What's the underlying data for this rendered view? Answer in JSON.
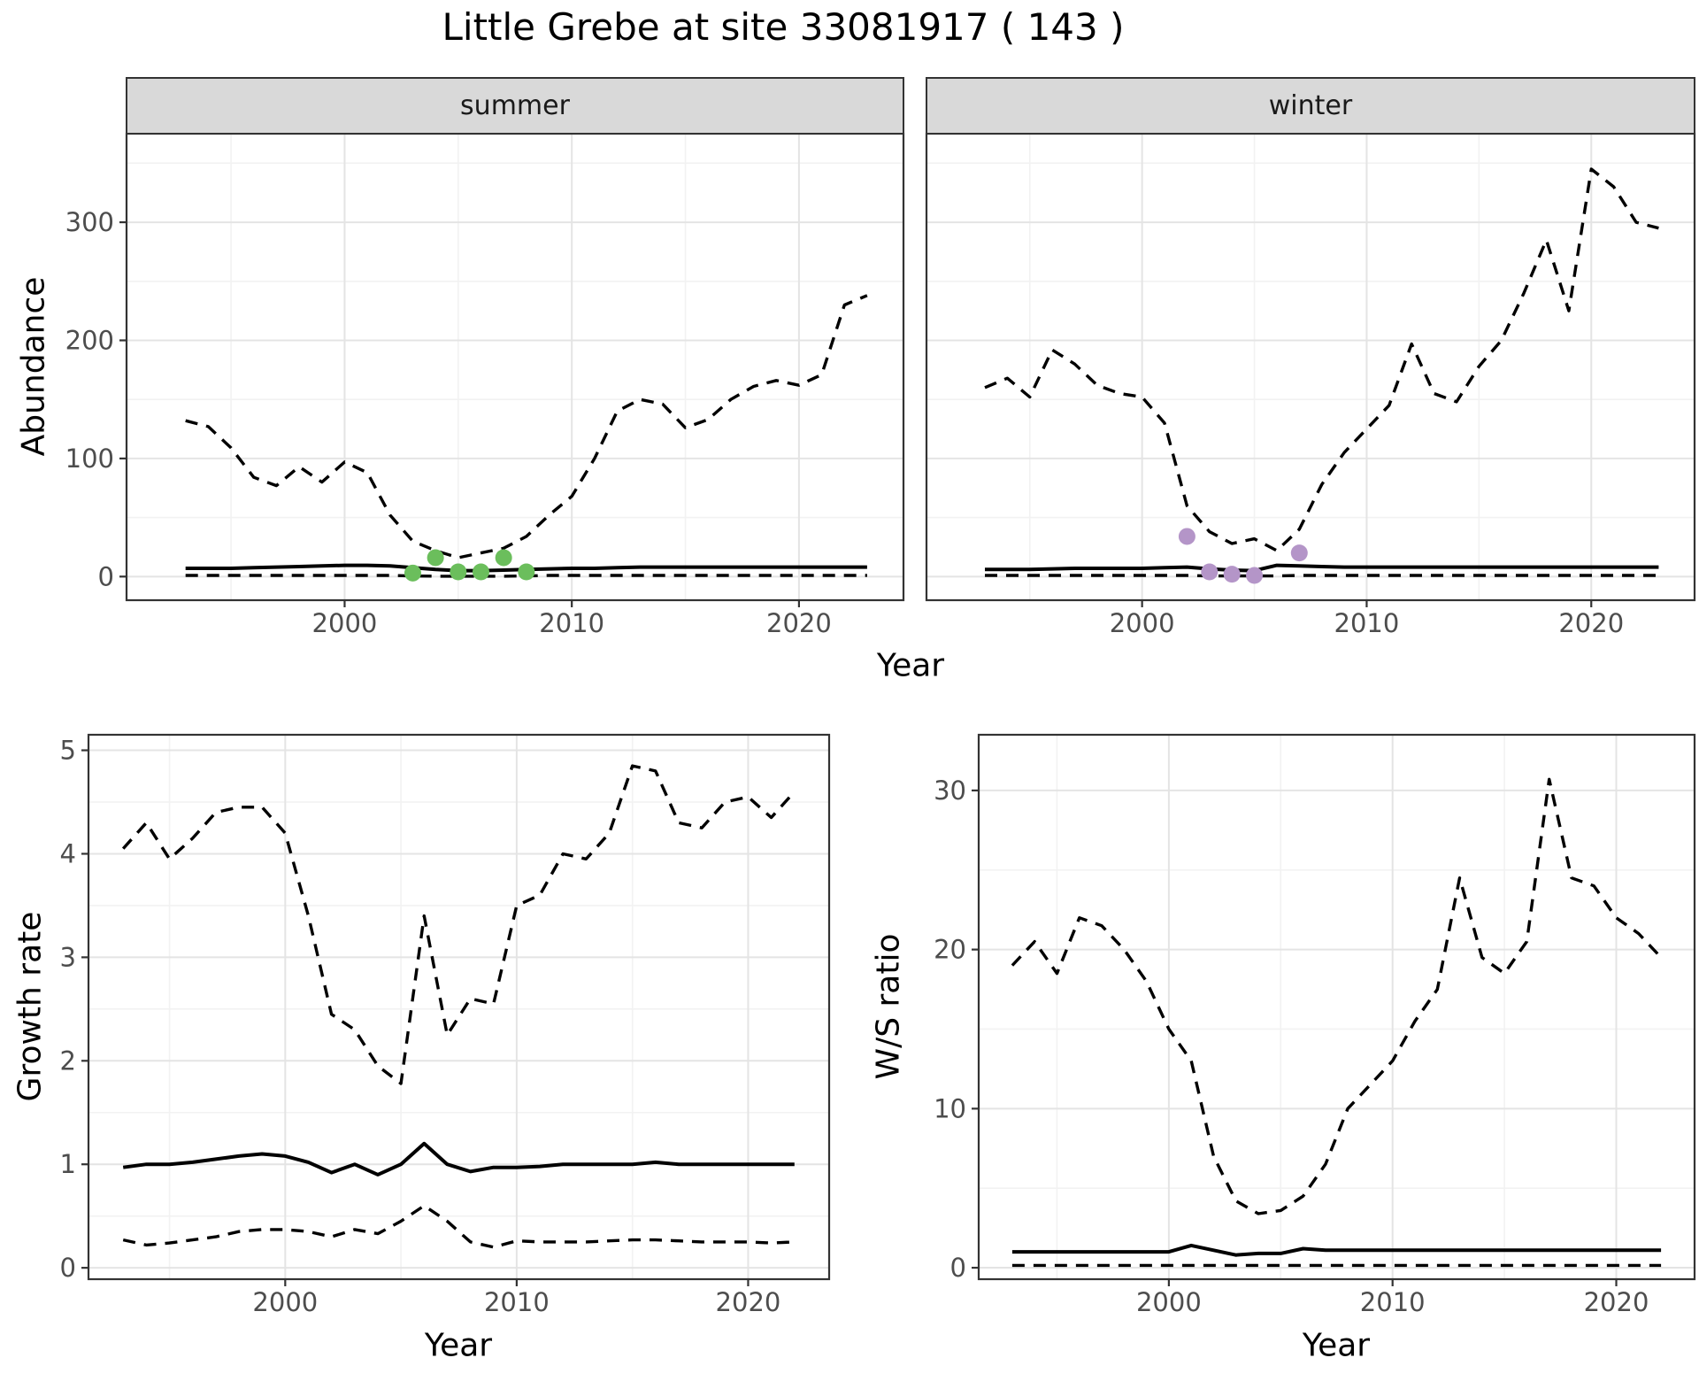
{
  "title": "Little Grebe at site 33081917 ( 143 )",
  "labels": {
    "top_ylabel": "Abundance",
    "top_xlabel": "Year",
    "growth_ylabel": "Growth rate",
    "growth_xlabel": "Year",
    "ws_ylabel": "W/S ratio",
    "ws_xlabel": "Year"
  },
  "colors": {
    "line": "#000000",
    "summer_points": "#6BBE5C",
    "winter_points": "#B495C8",
    "strip_bg": "#D9D9D9",
    "strip_text": "#1A1A1A",
    "panel_bg": "#FFFFFF",
    "panel_border": "#333333",
    "grid_major": "#E4E4E4",
    "grid_minor": "#F2F2F2",
    "tick_text": "#4D4D4D",
    "tick_mark": "#333333"
  },
  "chart_data": [
    {
      "id": "abundance-summer",
      "type": "line",
      "facet": "summer",
      "xlabel": "Year",
      "ylabel": "Abundance",
      "xlim": [
        1990.4,
        2024.6
      ],
      "ylim": [
        -20,
        375
      ],
      "xticks": [
        2000,
        2010,
        2020
      ],
      "yticks": [
        0,
        100,
        200,
        300
      ],
      "grid": true,
      "x": [
        1993,
        1994,
        1995,
        1996,
        1997,
        1998,
        1999,
        2000,
        2001,
        2002,
        2003,
        2004,
        2005,
        2006,
        2007,
        2008,
        2009,
        2010,
        2011,
        2012,
        2013,
        2014,
        2015,
        2016,
        2017,
        2018,
        2019,
        2020,
        2021,
        2022,
        2023
      ],
      "series": [
        {
          "name": "upper_ci",
          "style": "dashed",
          "values": [
            132,
            127,
            109,
            84,
            77,
            93,
            80,
            97,
            88,
            52,
            30,
            22,
            16,
            20,
            24,
            34,
            52,
            68,
            100,
            140,
            150,
            146,
            126,
            133,
            150,
            161,
            166,
            162,
            171,
            230,
            238
          ]
        },
        {
          "name": "fitted",
          "style": "solid",
          "values": [
            7,
            7,
            7,
            7.5,
            8,
            8.5,
            9,
            9.5,
            9.5,
            9,
            7.5,
            6,
            5,
            5,
            5.5,
            6,
            6.5,
            7,
            7,
            7.5,
            8,
            8,
            8,
            8,
            8,
            8,
            8,
            8,
            8,
            8,
            8
          ]
        },
        {
          "name": "lower_ci",
          "style": "dashed",
          "values": [
            1,
            1,
            1,
            1,
            1,
            1,
            1,
            1,
            1,
            1,
            0.5,
            0.3,
            0.3,
            0.3,
            0.3,
            0.5,
            1,
            1,
            1,
            1,
            1,
            1,
            1,
            1,
            1,
            1,
            1,
            1,
            1,
            1,
            1
          ]
        }
      ],
      "points": {
        "color_key": "summer_points",
        "data": [
          {
            "x": 2003,
            "y": 3
          },
          {
            "x": 2004,
            "y": 16
          },
          {
            "x": 2005,
            "y": 4
          },
          {
            "x": 2006,
            "y": 4
          },
          {
            "x": 2007,
            "y": 16
          },
          {
            "x": 2008,
            "y": 4
          }
        ]
      }
    },
    {
      "id": "abundance-winter",
      "type": "line",
      "facet": "winter",
      "xlabel": "Year",
      "ylabel": "Abundance",
      "xlim": [
        1990.4,
        2024.6
      ],
      "ylim": [
        -20,
        375
      ],
      "xticks": [
        2000,
        2010,
        2020
      ],
      "yticks": [
        0,
        100,
        200,
        300
      ],
      "grid": true,
      "x": [
        1993,
        1994,
        1995,
        1996,
        1997,
        1998,
        1999,
        2000,
        2001,
        2002,
        2003,
        2004,
        2005,
        2006,
        2007,
        2008,
        2009,
        2010,
        2011,
        2012,
        2013,
        2014,
        2015,
        2016,
        2017,
        2018,
        2019,
        2020,
        2021,
        2022,
        2023
      ],
      "series": [
        {
          "name": "upper_ci",
          "style": "dashed",
          "values": [
            160,
            168,
            152,
            192,
            180,
            162,
            155,
            152,
            130,
            60,
            38,
            28,
            32,
            22,
            40,
            78,
            105,
            125,
            145,
            197,
            155,
            148,
            178,
            200,
            240,
            285,
            225,
            345,
            330,
            300,
            295
          ]
        },
        {
          "name": "fitted",
          "style": "solid",
          "values": [
            6,
            6,
            6,
            6.5,
            7,
            7,
            7,
            7,
            7.5,
            8,
            6.5,
            5.5,
            5,
            9.5,
            9,
            8.5,
            8,
            8,
            8,
            8,
            8,
            8,
            8,
            8,
            8,
            8,
            8,
            8,
            8,
            8,
            8
          ]
        },
        {
          "name": "lower_ci",
          "style": "dashed",
          "values": [
            1,
            1,
            1,
            1,
            1,
            1,
            1,
            1,
            1,
            1,
            0.5,
            0.5,
            0.5,
            0.5,
            1,
            1,
            1,
            1,
            1,
            1,
            1,
            1,
            1,
            1,
            1,
            1,
            1,
            1,
            1,
            1,
            1
          ]
        }
      ],
      "points": {
        "color_key": "winter_points",
        "data": [
          {
            "x": 2002,
            "y": 34
          },
          {
            "x": 2003,
            "y": 4
          },
          {
            "x": 2004,
            "y": 2
          },
          {
            "x": 2005,
            "y": 1
          },
          {
            "x": 2007,
            "y": 20
          }
        ]
      }
    },
    {
      "id": "growth-rate",
      "type": "line",
      "facet": null,
      "xlabel": "Year",
      "ylabel": "Growth rate",
      "xlim": [
        1991.5,
        2023.5
      ],
      "ylim": [
        -0.11,
        5.15
      ],
      "xticks": [
        2000,
        2010,
        2020
      ],
      "yticks": [
        0,
        1,
        2,
        3,
        4,
        5
      ],
      "grid": true,
      "x": [
        1993,
        1994,
        1995,
        1996,
        1997,
        1998,
        1999,
        2000,
        2001,
        2002,
        2003,
        2004,
        2005,
        2006,
        2007,
        2008,
        2009,
        2010,
        2011,
        2012,
        2013,
        2014,
        2015,
        2016,
        2017,
        2018,
        2019,
        2020,
        2021,
        2022
      ],
      "series": [
        {
          "name": "upper_ci",
          "style": "dashed",
          "values": [
            4.05,
            4.3,
            3.95,
            4.15,
            4.4,
            4.45,
            4.45,
            4.2,
            3.4,
            2.45,
            2.3,
            1.95,
            1.78,
            3.4,
            2.25,
            2.6,
            2.55,
            3.5,
            3.6,
            4.0,
            3.95,
            4.2,
            4.85,
            4.8,
            4.3,
            4.25,
            4.5,
            4.55,
            4.35,
            4.6
          ]
        },
        {
          "name": "fitted",
          "style": "solid",
          "values": [
            0.97,
            1.0,
            1.0,
            1.02,
            1.05,
            1.08,
            1.1,
            1.08,
            1.02,
            0.92,
            1.0,
            0.9,
            1.0,
            1.2,
            1.0,
            0.93,
            0.97,
            0.97,
            0.98,
            1.0,
            1.0,
            1.0,
            1.0,
            1.02,
            1.0,
            1.0,
            1.0,
            1.0,
            1.0,
            1.0
          ]
        },
        {
          "name": "lower_ci",
          "style": "dashed",
          "values": [
            0.27,
            0.22,
            0.24,
            0.27,
            0.3,
            0.35,
            0.37,
            0.37,
            0.35,
            0.3,
            0.37,
            0.33,
            0.45,
            0.6,
            0.45,
            0.25,
            0.2,
            0.26,
            0.25,
            0.25,
            0.25,
            0.26,
            0.27,
            0.27,
            0.26,
            0.25,
            0.25,
            0.25,
            0.24,
            0.25
          ]
        }
      ],
      "points": null
    },
    {
      "id": "ws-ratio",
      "type": "line",
      "facet": null,
      "xlabel": "Year",
      "ylabel": "W/S ratio",
      "xlim": [
        1991.5,
        2023.5
      ],
      "ylim": [
        -0.72,
        33.5
      ],
      "xticks": [
        2000,
        2010,
        2020
      ],
      "yticks": [
        0,
        10,
        20,
        30
      ],
      "grid": true,
      "x": [
        1993,
        1994,
        1995,
        1996,
        1997,
        1998,
        1999,
        2000,
        2001,
        2002,
        2003,
        2004,
        2005,
        2006,
        2007,
        2008,
        2009,
        2010,
        2011,
        2012,
        2013,
        2014,
        2015,
        2016,
        2017,
        2018,
        2019,
        2020,
        2021,
        2022
      ],
      "series": [
        {
          "name": "upper_ci",
          "style": "dashed",
          "values": [
            19,
            20.5,
            18.5,
            22,
            21.5,
            20,
            18,
            15,
            13,
            7,
            4.2,
            3.4,
            3.6,
            4.5,
            6.5,
            10,
            11.5,
            13,
            15.5,
            17.5,
            24.5,
            19.5,
            18.5,
            20.5,
            30.7,
            24.5,
            24,
            22,
            21,
            19.5
          ]
        },
        {
          "name": "fitted",
          "style": "solid",
          "values": [
            1.0,
            1.0,
            1.0,
            1.0,
            1.0,
            1.0,
            1.0,
            1.0,
            1.4,
            1.1,
            0.8,
            0.9,
            0.9,
            1.2,
            1.1,
            1.1,
            1.1,
            1.1,
            1.1,
            1.1,
            1.1,
            1.1,
            1.1,
            1.1,
            1.1,
            1.1,
            1.1,
            1.1,
            1.1,
            1.1
          ]
        },
        {
          "name": "lower_ci",
          "style": "dashed",
          "values": [
            0.15,
            0.15,
            0.15,
            0.15,
            0.15,
            0.15,
            0.15,
            0.15,
            0.15,
            0.15,
            0.15,
            0.15,
            0.15,
            0.15,
            0.15,
            0.15,
            0.15,
            0.15,
            0.15,
            0.15,
            0.15,
            0.15,
            0.15,
            0.15,
            0.15,
            0.15,
            0.15,
            0.15,
            0.15,
            0.15
          ]
        }
      ],
      "points": null
    }
  ]
}
